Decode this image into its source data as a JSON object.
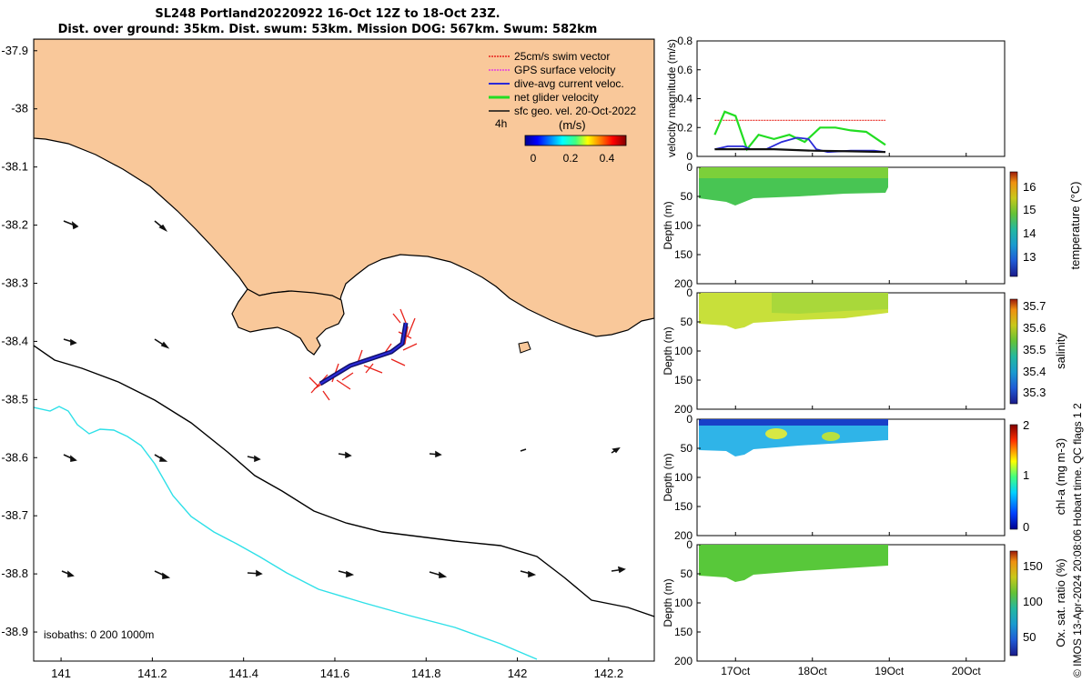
{
  "header": {
    "title_line1": "SL248 Portland20220922 16-Oct 12Z to 18-Oct 23Z.",
    "title_line2": "Dist. over ground: 35km. Dist. swum: 53km. Mission DOG: 567km. Swum: 582km"
  },
  "map": {
    "lon_ticks": [
      "141",
      "141.2",
      "141.4",
      "141.6",
      "141.8",
      "142",
      "142.2"
    ],
    "lat_ticks": [
      "-37.9",
      "-38",
      "-38.1",
      "-38.2",
      "-38.3",
      "-38.4",
      "-38.5",
      "-38.6",
      "-38.7",
      "-38.8",
      "-38.9"
    ],
    "legend": [
      {
        "label": "25cm/s swim vector",
        "color": "#e8231c"
      },
      {
        "label": "GPS surface velocity",
        "color": "#e23ee2"
      },
      {
        "label": "dive-avg current veloc.",
        "color": "#2a2ad8"
      },
      {
        "label": "net glider velocity",
        "color": "#22dd22"
      },
      {
        "label": "sfc geo. vel. 20-Oct-2022",
        "color": "#111111"
      }
    ],
    "colorbar_title": "(m/s)",
    "colorbar_interval": "4h",
    "colorbar_ticks": [
      "0",
      "0.2",
      "0.4"
    ],
    "isobath_note": "isobaths: 0   200  1000m",
    "land_color": "#f9c89a",
    "isobath_200_color": "#000000",
    "isobath_1000_color": "#2ee0e8"
  },
  "panels": {
    "velocity": {
      "ylabel": "velocity magnitude (m/s)",
      "yticks": [
        "0",
        "0.2",
        "0.4",
        "0.6",
        "0.8"
      ]
    },
    "depth_ylabel": "Depth (m)",
    "depth_ticks": [
      "0",
      "50",
      "100",
      "150",
      "200"
    ],
    "time_ticks": [
      "17Oct",
      "18Oct",
      "19Oct",
      "20Oct"
    ],
    "temperature": {
      "label": "temperature (°C)",
      "ticks": [
        "13",
        "14",
        "15",
        "16"
      ]
    },
    "salinity": {
      "label": "salinity",
      "ticks": [
        "35.3",
        "35.4",
        "35.5",
        "35.6",
        "35.7"
      ]
    },
    "chla": {
      "label": "chl-a (mg m-3)",
      "ticks": [
        "0",
        "1",
        "2"
      ]
    },
    "oxygen": {
      "label": "Ox. sat. ratio (%)",
      "ticks": [
        "50",
        "100",
        "150"
      ]
    }
  },
  "footer": {
    "credit": "© IMOS 13-Apr-2024 20:08:06 Hobart time. QC flags 1  2"
  },
  "chart_data": [
    {
      "type": "line",
      "panel": "glider track map",
      "title": "SL248 Portland20220922 16-Oct 12Z to 18-Oct 23Z.",
      "xlim": [
        140.94,
        142.3
      ],
      "ylim": [
        -38.95,
        -37.88
      ],
      "glider_track": {
        "x": [
          141.56,
          141.6,
          141.66,
          141.72,
          141.75,
          141.76
        ],
        "y": [
          -38.48,
          -38.46,
          -38.445,
          -38.43,
          -38.41,
          -38.37
        ]
      },
      "current_arrow_origins": {
        "x": [
          141.02,
          141.22,
          141.02,
          141.22,
          141.02,
          141.22,
          141.42,
          141.62,
          141.82,
          142.02,
          142.22,
          141.02,
          141.22,
          141.42,
          141.62,
          141.82,
          142.02,
          142.22
        ],
        "y": [
          -38.2,
          -38.2,
          -38.4,
          -38.4,
          -38.6,
          -38.6,
          -38.6,
          -38.6,
          -38.6,
          -38.6,
          -38.6,
          -38.8,
          -38.8,
          -38.8,
          -38.8,
          -38.8,
          -38.8,
          -38.8
        ]
      }
    },
    {
      "type": "line",
      "panel": "velocity magnitude",
      "ylabel": "velocity magnitude (m/s)",
      "ylim": [
        0,
        0.8
      ],
      "x_range_days": [
        "16Oct 12Z",
        "20Oct 12Z"
      ],
      "series": [
        {
          "name": "25cm/s swim vector",
          "x": [
            16.73,
            18.95
          ],
          "values": [
            0.25,
            0.25
          ]
        },
        {
          "name": "net glider velocity",
          "x": [
            16.73,
            16.86,
            17.0,
            17.15,
            17.3,
            17.5,
            17.7,
            17.9,
            18.1,
            18.3,
            18.5,
            18.7,
            18.95
          ],
          "values": [
            0.15,
            0.31,
            0.28,
            0.05,
            0.15,
            0.12,
            0.15,
            0.1,
            0.2,
            0.2,
            0.18,
            0.17,
            0.08
          ]
        },
        {
          "name": "dive-avg current veloc.",
          "x": [
            16.73,
            16.9,
            17.1,
            17.2,
            17.4,
            17.6,
            17.8,
            17.95,
            18.05,
            18.2,
            18.5,
            18.8,
            18.95
          ],
          "values": [
            0.05,
            0.07,
            0.07,
            0.05,
            0.05,
            0.1,
            0.13,
            0.12,
            0.05,
            0.03,
            0.04,
            0.04,
            0.03
          ]
        },
        {
          "name": "sfc geo. vel. 20-Oct-2022",
          "x": [
            16.73,
            17.5,
            18.0,
            18.5,
            18.95
          ],
          "values": [
            0.05,
            0.05,
            0.04,
            0.035,
            0.03
          ]
        }
      ]
    },
    {
      "type": "heatmap",
      "panel": "temperature",
      "ylabel": "Depth (m)",
      "ylim": [
        200,
        0
      ],
      "clim": [
        12.2,
        16.9
      ],
      "dominant_value": 14.2,
      "profile_depth_m": [
        40,
        60
      ]
    },
    {
      "type": "heatmap",
      "panel": "salinity",
      "ylabel": "Depth (m)",
      "ylim": [
        200,
        0
      ],
      "clim": [
        35.25,
        35.75
      ],
      "dominant_value": 35.55,
      "profile_depth_m": [
        40,
        60
      ]
    },
    {
      "type": "heatmap",
      "panel": "chl-a",
      "ylabel": "Depth (m)",
      "ylim": [
        200,
        0
      ],
      "clim": [
        0,
        2
      ],
      "dominant_value": 0.8,
      "profile_depth_m": [
        40,
        60
      ]
    },
    {
      "type": "heatmap",
      "panel": "oxygen saturation",
      "ylabel": "Depth (m)",
      "ylim": [
        200,
        0
      ],
      "clim": [
        20,
        170
      ],
      "dominant_value": 100,
      "profile_depth_m": [
        40,
        60
      ]
    }
  ]
}
